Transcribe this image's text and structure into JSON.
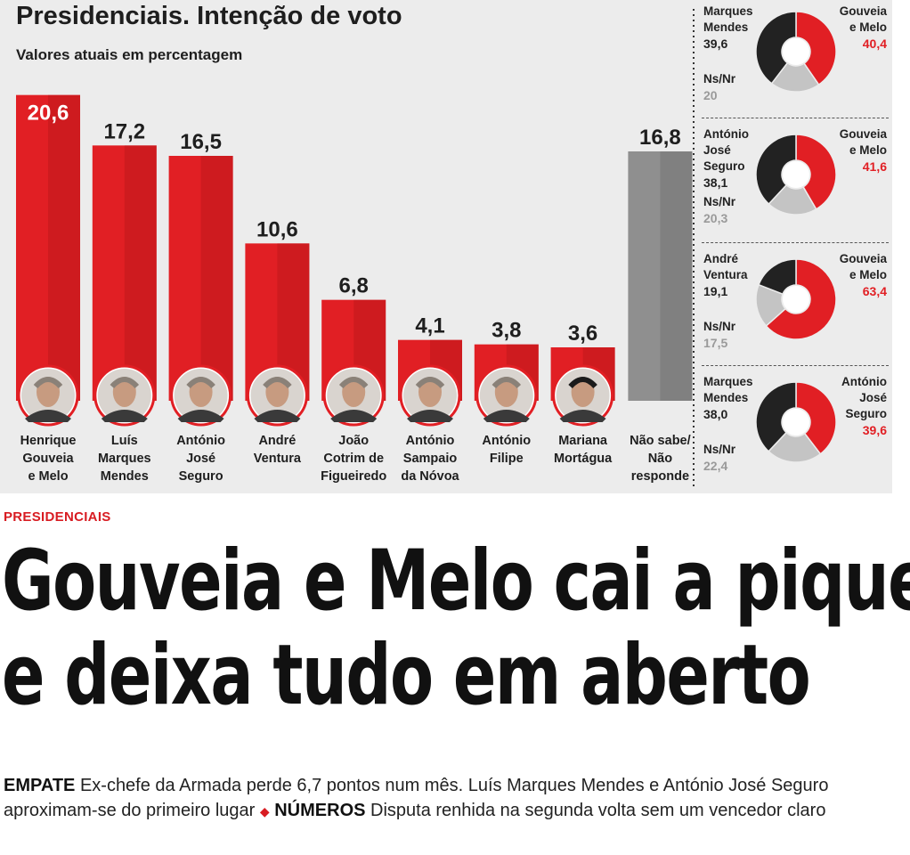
{
  "header": {
    "title": "Presidenciais. Intenção de voto",
    "subtitle": "Valores atuais em percentagem"
  },
  "chart_data": [
    {
      "type": "bar",
      "title": "Presidenciais. Intenção de voto",
      "subtitle": "Valores atuais em percentagem",
      "categories": [
        [
          "Henrique",
          "Gouveia",
          "e Melo"
        ],
        [
          "Luís",
          "Marques",
          "Mendes"
        ],
        [
          "António",
          "José",
          "Seguro"
        ],
        [
          "André",
          "Ventura"
        ],
        [
          "João",
          "Cotrim de",
          "Figueiredo"
        ],
        [
          "António",
          "Sampaio",
          "da Nóvoa"
        ],
        [
          "António",
          "Filipe"
        ],
        [
          "Mariana",
          "Mortágua"
        ],
        [
          "Não sabe/",
          "Não",
          "responde"
        ]
      ],
      "values": [
        20.6,
        17.2,
        16.5,
        10.6,
        6.8,
        4.1,
        3.8,
        3.6,
        16.8
      ],
      "value_labels": [
        "20,6",
        "17,2",
        "16,5",
        "10,6",
        "6,8",
        "4,1",
        "3,8",
        "3,6",
        "16,8"
      ],
      "colors": [
        "#e11f24",
        "#e11f24",
        "#e11f24",
        "#e11f24",
        "#e11f24",
        "#e11f24",
        "#e11f24",
        "#e11f24",
        "#8f8f8f"
      ],
      "ylim": [
        0,
        21
      ]
    },
    {
      "type": "pie",
      "slices": [
        {
          "label": "Marques Mendes",
          "value": 39.6,
          "value_label": "39,6",
          "color": "#222222"
        },
        {
          "label": "Gouveia e Melo",
          "value": 40.4,
          "value_label": "40,4",
          "color": "#e11f24"
        },
        {
          "label": "Ns/Nr",
          "value": 20,
          "value_label": "20",
          "color": "#c4c4c4"
        }
      ]
    },
    {
      "type": "pie",
      "slices": [
        {
          "label": "António José Seguro",
          "value": 38.1,
          "value_label": "38,1",
          "color": "#222222"
        },
        {
          "label": "Gouveia e Melo",
          "value": 41.6,
          "value_label": "41,6",
          "color": "#e11f24"
        },
        {
          "label": "Ns/Nr",
          "value": 20.3,
          "value_label": "20,3",
          "color": "#c4c4c4"
        }
      ]
    },
    {
      "type": "pie",
      "slices": [
        {
          "label": "André Ventura",
          "value": 19.1,
          "value_label": "19,1",
          "color": "#222222"
        },
        {
          "label": "Gouveia e Melo",
          "value": 63.4,
          "value_label": "63,4",
          "color": "#e11f24"
        },
        {
          "label": "Ns/Nr",
          "value": 17.5,
          "value_label": "17,5",
          "color": "#c4c4c4"
        }
      ]
    },
    {
      "type": "pie",
      "slices": [
        {
          "label": "Marques Mendes",
          "value": 38.0,
          "value_label": "38,0",
          "color": "#222222"
        },
        {
          "label": "António José Seguro",
          "value": 39.6,
          "value_label": "39,6",
          "color": "#e11f24"
        },
        {
          "label": "Ns/Nr",
          "value": 22.4,
          "value_label": "22,4",
          "color": "#c4c4c4"
        }
      ]
    }
  ],
  "pies": [
    {
      "left_lines": [
        "Marques",
        "Mendes"
      ],
      "left_value": "39,6",
      "right_lines": [
        "Gouveia",
        "e Melo"
      ],
      "right_value": "40,4",
      "ns_label": "Ns/Nr",
      "ns_value": "20"
    },
    {
      "left_lines": [
        "António",
        "José",
        "Seguro"
      ],
      "left_value": "38,1",
      "right_lines": [
        "Gouveia",
        "e Melo"
      ],
      "right_value": "41,6",
      "ns_label": "Ns/Nr",
      "ns_value": "20,3"
    },
    {
      "left_lines": [
        "André",
        "Ventura"
      ],
      "left_value": "19,1",
      "right_lines": [
        "Gouveia",
        "e Melo"
      ],
      "right_value": "63,4",
      "ns_label": "Ns/Nr",
      "ns_value": "17,5"
    },
    {
      "left_lines": [
        "Marques",
        "Mendes"
      ],
      "left_value": "38,0",
      "right_lines": [
        "António",
        "José",
        "Seguro"
      ],
      "right_value": "39,6",
      "ns_label": "Ns/Nr",
      "ns_value": "22,4"
    }
  ],
  "article": {
    "section": "PRESIDENCIAIS",
    "headline_line1": "Gouveia e Melo cai a pique",
    "headline_line2": "e deixa tudo em aberto",
    "lead_kicker1": "EMPATE",
    "lead_text1": "Ex-chefe da Armada perde 6,7 pontos num mês. Luís Marques Mendes e António José Seguro aproximam-se do primeiro lugar",
    "lead_kicker2": "NÚMEROS",
    "lead_text2": "Disputa renhida na segunda volta sem um vencedor claro"
  },
  "colors": {
    "accent": "#e11f24",
    "dark": "#222222",
    "gray": "#8f8f8f",
    "light_gray": "#c4c4c4",
    "panel": "#ececec"
  }
}
